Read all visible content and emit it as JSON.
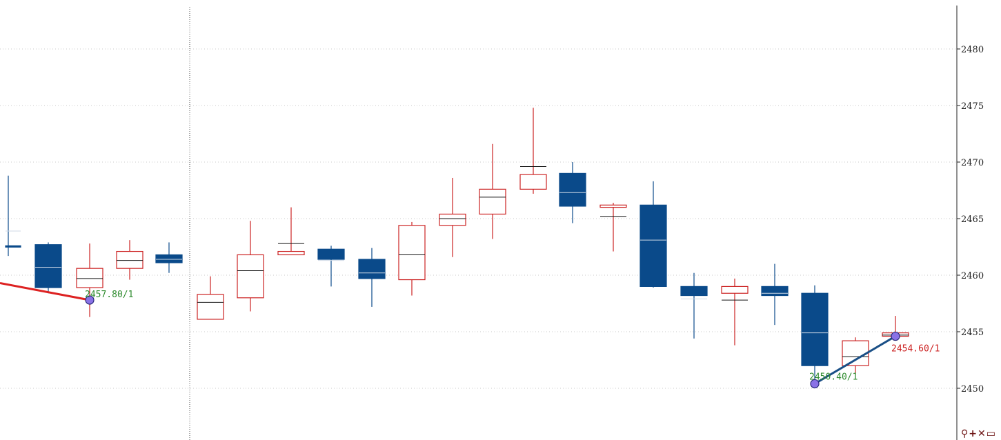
{
  "chart_data": {
    "type": "candlestick",
    "ylim": [
      2446,
      2483
    ],
    "y_ticks": [
      2450,
      2455,
      2460,
      2465,
      2470,
      2475,
      2480
    ],
    "y_tick_labels": [
      "2450",
      "2455",
      "2460",
      "2465",
      "2470",
      "2475",
      "2480"
    ],
    "grid": "horizontal dotted",
    "colors": {
      "up": "#cc2222",
      "down": "#0a4a8a",
      "mark": "#111111"
    },
    "candles": [
      {
        "o": 2462.6,
        "c": 2462.5,
        "h": 2468.8,
        "l": 2461.7,
        "m": 2463.9
      },
      {
        "o": 2462.7,
        "c": 2458.9,
        "h": 2462.9,
        "l": 2458.4,
        "m": 2460.7
      },
      {
        "o": 2458.9,
        "c": 2460.6,
        "h": 2462.8,
        "l": 2456.3,
        "m": 2459.7
      },
      {
        "o": 2460.6,
        "c": 2462.1,
        "h": 2463.1,
        "l": 2459.6,
        "m": 2461.3
      },
      {
        "o": 2461.8,
        "c": 2461.1,
        "h": 2462.9,
        "l": 2460.2,
        "m": 2461.4
      },
      {
        "o": 2456.1,
        "c": 2458.3,
        "h": 2459.9,
        "l": 2456.1,
        "m": 2457.6
      },
      {
        "o": 2458.0,
        "c": 2461.8,
        "h": 2464.8,
        "l": 2456.8,
        "m": 2460.4
      },
      {
        "o": 2461.8,
        "c": 2462.1,
        "h": 2466.0,
        "l": 2461.8,
        "m": 2462.8
      },
      {
        "o": 2462.3,
        "c": 2461.4,
        "h": 2462.6,
        "l": 2459.0,
        "m": 2461.3
      },
      {
        "o": 2461.4,
        "c": 2459.7,
        "h": 2462.4,
        "l": 2457.2,
        "m": 2460.2
      },
      {
        "o": 2459.6,
        "c": 2464.4,
        "h": 2464.7,
        "l": 2458.2,
        "m": 2461.8
      },
      {
        "o": 2464.4,
        "c": 2465.4,
        "h": 2468.6,
        "l": 2461.6,
        "m": 2465.0
      },
      {
        "o": 2465.4,
        "c": 2467.6,
        "h": 2471.6,
        "l": 2463.2,
        "m": 2466.9
      },
      {
        "o": 2467.6,
        "c": 2468.9,
        "h": 2474.8,
        "l": 2467.2,
        "m": 2469.6
      },
      {
        "o": 2469.0,
        "c": 2466.1,
        "h": 2470.0,
        "l": 2464.6,
        "m": 2467.3
      },
      {
        "o": 2466.0,
        "c": 2466.2,
        "h": 2466.4,
        "l": 2462.1,
        "m": 2465.2
      },
      {
        "o": 2466.2,
        "c": 2459.0,
        "h": 2468.3,
        "l": 2458.9,
        "m": 2463.1
      },
      {
        "o": 2459.0,
        "c": 2458.2,
        "h": 2460.2,
        "l": 2454.4,
        "m": 2457.9
      },
      {
        "o": 2458.4,
        "c": 2459.0,
        "h": 2459.7,
        "l": 2453.8,
        "m": 2457.8
      },
      {
        "o": 2459.0,
        "c": 2458.2,
        "h": 2461.0,
        "l": 2455.6,
        "m": 2458.4
      },
      {
        "o": 2458.4,
        "c": 2452.0,
        "h": 2459.1,
        "l": 2450.6,
        "m": 2454.9
      },
      {
        "o": 2452.0,
        "c": 2454.2,
        "h": 2454.5,
        "l": 2451.2,
        "m": 2452.8
      },
      {
        "o": 2454.6,
        "c": 2454.9,
        "h": 2456.4,
        "l": 2454.4,
        "m": 2454.7
      }
    ],
    "annotations": [
      {
        "label": "2457.80/1",
        "value": 2457.8,
        "color": "#2e8b2e"
      },
      {
        "label": "2450.40/1",
        "value": 2450.4,
        "color": "#2e8b2e"
      },
      {
        "label": "2454.60/1",
        "value": 2454.6,
        "color": "#cc2222"
      }
    ],
    "lines": [
      {
        "from": 2459.3,
        "to": 2457.8,
        "color": "#dd2222"
      },
      {
        "from": 2450.4,
        "to": 2454.6,
        "color": "#1a4f86"
      }
    ]
  },
  "toolbar": {
    "zoom_glyph": "⚲",
    "add_glyph": "+",
    "close_glyph": "✕",
    "window_glyph": "▭"
  }
}
